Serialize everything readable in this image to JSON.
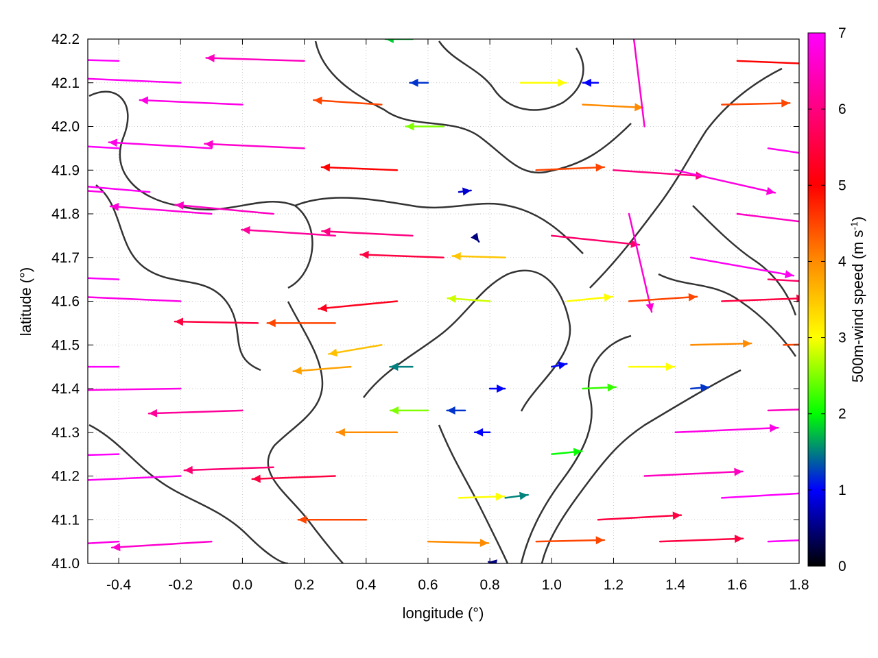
{
  "chart_data": {
    "type": "vector-field",
    "xlabel": "longitude (°)",
    "ylabel": "latitude (°)",
    "colorbar_label": "500m-wind speed (m s",
    "colorbar_label_sup": "-1",
    "colorbar_label_tail": ")",
    "xlim": [
      -0.5,
      1.8
    ],
    "ylim": [
      41.0,
      42.2
    ],
    "clim": [
      0,
      7
    ],
    "x_ticks": [
      "-0.4",
      "-0.2",
      "0.0",
      "0.2",
      "0.4",
      "0.6",
      "0.8",
      "1.0",
      "1.2",
      "1.4",
      "1.6",
      "1.8"
    ],
    "x_tick_values": [
      -0.4,
      -0.2,
      0.0,
      0.2,
      0.4,
      0.6,
      0.8,
      1.0,
      1.2,
      1.4,
      1.6,
      1.8
    ],
    "y_ticks": [
      "41.0",
      "41.1",
      "41.2",
      "41.3",
      "41.4",
      "41.5",
      "41.6",
      "41.7",
      "41.8",
      "41.9",
      "42.0",
      "42.1",
      "42.2"
    ],
    "y_tick_values": [
      41.0,
      41.1,
      41.2,
      41.3,
      41.4,
      41.5,
      41.6,
      41.7,
      41.8,
      41.9,
      42.0,
      42.1,
      42.2
    ],
    "colorbar_ticks": [
      "0",
      "1",
      "2",
      "3",
      "4",
      "5",
      "6",
      "7"
    ],
    "colorbar_tick_values": [
      0,
      1,
      2,
      3,
      4,
      5,
      6,
      7
    ],
    "colormap": [
      "#000000",
      "#0000ff",
      "#00ff00",
      "#ffff00",
      "#ff8c00",
      "#ff0000",
      "#ff00ff"
    ],
    "grid": true,
    "vectors": [
      {
        "lon": -0.45,
        "lat": 41.85,
        "u": -6.8,
        "v": 0.5
      },
      {
        "lon": -0.3,
        "lat": 41.85,
        "u": -6.9,
        "v": 0.6
      },
      {
        "lon": -0.1,
        "lat": 41.8,
        "u": -6.7,
        "v": 0.5
      },
      {
        "lon": 0.1,
        "lat": 41.8,
        "u": -6.5,
        "v": 0.6
      },
      {
        "lon": 0.3,
        "lat": 41.75,
        "u": -6.2,
        "v": 0.4
      },
      {
        "lon": -0.4,
        "lat": 41.65,
        "u": -7.0,
        "v": 0.3
      },
      {
        "lon": -0.2,
        "lat": 41.6,
        "u": -6.8,
        "v": 0.3
      },
      {
        "lon": 0.05,
        "lat": 41.55,
        "u": -5.5,
        "v": 0.1
      },
      {
        "lon": -0.4,
        "lat": 41.45,
        "u": -7.0,
        "v": 0.0
      },
      {
        "lon": -0.2,
        "lat": 41.4,
        "u": -6.8,
        "v": -0.1
      },
      {
        "lon": 0.0,
        "lat": 41.35,
        "u": -6.2,
        "v": -0.2
      },
      {
        "lon": -0.4,
        "lat": 41.25,
        "u": -7.0,
        "v": -0.2
      },
      {
        "lon": -0.2,
        "lat": 41.2,
        "u": -6.9,
        "v": -0.3
      },
      {
        "lon": 0.1,
        "lat": 41.22,
        "u": -5.9,
        "v": -0.2
      },
      {
        "lon": 0.3,
        "lat": 41.2,
        "u": -5.5,
        "v": -0.2
      },
      {
        "lon": -0.4,
        "lat": 41.05,
        "u": -6.8,
        "v": -0.4
      },
      {
        "lon": -0.1,
        "lat": 41.05,
        "u": -6.6,
        "v": -0.4
      },
      {
        "lon": -0.4,
        "lat": 42.15,
        "u": -7.0,
        "v": 0.2
      },
      {
        "lon": -0.2,
        "lat": 42.1,
        "u": -6.9,
        "v": 0.3
      },
      {
        "lon": 0.0,
        "lat": 42.05,
        "u": -6.8,
        "v": 0.3
      },
      {
        "lon": 0.2,
        "lat": 42.15,
        "u": -6.5,
        "v": 0.2
      },
      {
        "lon": -0.4,
        "lat": 41.95,
        "u": -7.0,
        "v": 0.4
      },
      {
        "lon": -0.1,
        "lat": 41.95,
        "u": -6.8,
        "v": 0.4
      },
      {
        "lon": 0.2,
        "lat": 41.95,
        "u": -6.6,
        "v": 0.3
      },
      {
        "lon": 0.3,
        "lat": 41.55,
        "u": -4.5,
        "v": 0.0
      },
      {
        "lon": 0.35,
        "lat": 41.45,
        "u": -3.8,
        "v": -0.3
      },
      {
        "lon": 0.45,
        "lat": 42.05,
        "u": -4.5,
        "v": 0.3
      },
      {
        "lon": 0.5,
        "lat": 41.9,
        "u": -5.0,
        "v": 0.2
      },
      {
        "lon": 0.55,
        "lat": 41.75,
        "u": -6.0,
        "v": 0.3
      },
      {
        "lon": 0.65,
        "lat": 41.7,
        "u": -5.5,
        "v": 0.2
      },
      {
        "lon": 0.5,
        "lat": 41.6,
        "u": -5.2,
        "v": -0.5
      },
      {
        "lon": 0.45,
        "lat": 41.5,
        "u": -3.5,
        "v": -0.6
      },
      {
        "lon": 0.55,
        "lat": 41.45,
        "u": -1.5,
        "v": 0.0
      },
      {
        "lon": 0.6,
        "lat": 41.35,
        "u": -2.5,
        "v": 0.0
      },
      {
        "lon": 0.5,
        "lat": 41.3,
        "u": -4.0,
        "v": 0.0
      },
      {
        "lon": 0.4,
        "lat": 41.1,
        "u": -4.5,
        "v": 0.0
      },
      {
        "lon": 0.6,
        "lat": 41.05,
        "u": 4.0,
        "v": -0.1
      },
      {
        "lon": 0.7,
        "lat": 41.15,
        "u": 3.0,
        "v": 0.1
      },
      {
        "lon": 0.55,
        "lat": 42.2,
        "u": -1.8,
        "v": 0.0
      },
      {
        "lon": 0.6,
        "lat": 42.1,
        "u": -1.2,
        "v": 0.0
      },
      {
        "lon": 0.65,
        "lat": 42.0,
        "u": -2.5,
        "v": 0.0
      },
      {
        "lon": 0.7,
        "lat": 41.85,
        "u": 0.8,
        "v": 0.1
      },
      {
        "lon": 0.75,
        "lat": 41.75,
        "u": 0.3,
        "v": -0.4
      },
      {
        "lon": 0.72,
        "lat": 41.35,
        "u": -1.2,
        "v": 0.0
      },
      {
        "lon": 0.8,
        "lat": 41.4,
        "u": 1.0,
        "v": 0.0
      },
      {
        "lon": 0.8,
        "lat": 41.3,
        "u": -1.0,
        "v": 0.0
      },
      {
        "lon": 0.85,
        "lat": 41.15,
        "u": 1.5,
        "v": 0.2
      },
      {
        "lon": 0.82,
        "lat": 41.0,
        "u": -0.5,
        "v": 0.1
      },
      {
        "lon": 0.8,
        "lat": 41.6,
        "u": -2.8,
        "v": 0.2
      },
      {
        "lon": 0.85,
        "lat": 41.7,
        "u": -3.5,
        "v": 0.1
      },
      {
        "lon": 0.9,
        "lat": 42.1,
        "u": 3.0,
        "v": 0.0
      },
      {
        "lon": 0.95,
        "lat": 41.9,
        "u": 4.5,
        "v": 0.2
      },
      {
        "lon": 1.0,
        "lat": 41.75,
        "u": 5.8,
        "v": -0.6
      },
      {
        "lon": 1.0,
        "lat": 41.45,
        "u": 1.0,
        "v": 0.2
      },
      {
        "lon": 1.0,
        "lat": 41.25,
        "u": 2.0,
        "v": 0.2
      },
      {
        "lon": 0.95,
        "lat": 41.05,
        "u": 4.5,
        "v": 0.1
      },
      {
        "lon": 1.05,
        "lat": 41.6,
        "u": 3.0,
        "v": 0.3
      },
      {
        "lon": 1.1,
        "lat": 41.4,
        "u": 2.2,
        "v": 0.1
      },
      {
        "lon": 1.15,
        "lat": 41.1,
        "u": 5.5,
        "v": 0.3
      },
      {
        "lon": 1.1,
        "lat": 42.05,
        "u": 4.0,
        "v": -0.2
      },
      {
        "lon": 1.15,
        "lat": 42.1,
        "u": -1.0,
        "v": 0.0
      },
      {
        "lon": 1.2,
        "lat": 41.9,
        "u": 6.0,
        "v": -0.4
      },
      {
        "lon": 1.25,
        "lat": 41.8,
        "u": 1.5,
        "v": -6.5
      },
      {
        "lon": 1.3,
        "lat": 42.0,
        "u": -0.8,
        "v": 6.6
      },
      {
        "lon": 1.25,
        "lat": 41.6,
        "u": 4.5,
        "v": 0.3
      },
      {
        "lon": 1.25,
        "lat": 41.45,
        "u": 3.0,
        "v": 0.0
      },
      {
        "lon": 1.3,
        "lat": 41.2,
        "u": 6.5,
        "v": 0.3
      },
      {
        "lon": 1.35,
        "lat": 41.05,
        "u": 5.5,
        "v": 0.2
      },
      {
        "lon": 1.4,
        "lat": 41.9,
        "u": 6.6,
        "v": -1.5
      },
      {
        "lon": 1.45,
        "lat": 41.7,
        "u": 6.8,
        "v": -1.2
      },
      {
        "lon": 1.45,
        "lat": 41.5,
        "u": 4.0,
        "v": 0.1
      },
      {
        "lon": 1.45,
        "lat": 41.4,
        "u": 1.2,
        "v": 0.1
      },
      {
        "lon": 1.4,
        "lat": 41.3,
        "u": 6.8,
        "v": 0.3
      },
      {
        "lon": 1.55,
        "lat": 41.15,
        "u": 7.0,
        "v": 0.4
      },
      {
        "lon": 1.55,
        "lat": 41.6,
        "u": 5.5,
        "v": 0.2
      },
      {
        "lon": 1.6,
        "lat": 41.8,
        "u": 6.5,
        "v": -0.8
      },
      {
        "lon": 1.55,
        "lat": 42.05,
        "u": 4.5,
        "v": 0.1
      },
      {
        "lon": 1.6,
        "lat": 42.15,
        "u": 5.0,
        "v": -0.2
      },
      {
        "lon": 1.7,
        "lat": 41.95,
        "u": 6.8,
        "v": -1.0
      },
      {
        "lon": 1.7,
        "lat": 41.65,
        "u": 5.8,
        "v": -0.3
      },
      {
        "lon": 1.7,
        "lat": 41.35,
        "u": 6.5,
        "v": 0.2
      },
      {
        "lon": 1.7,
        "lat": 41.05,
        "u": 7.0,
        "v": 0.3
      },
      {
        "lon": 1.75,
        "lat": 41.5,
        "u": 4.5,
        "v": 0.1
      }
    ]
  }
}
